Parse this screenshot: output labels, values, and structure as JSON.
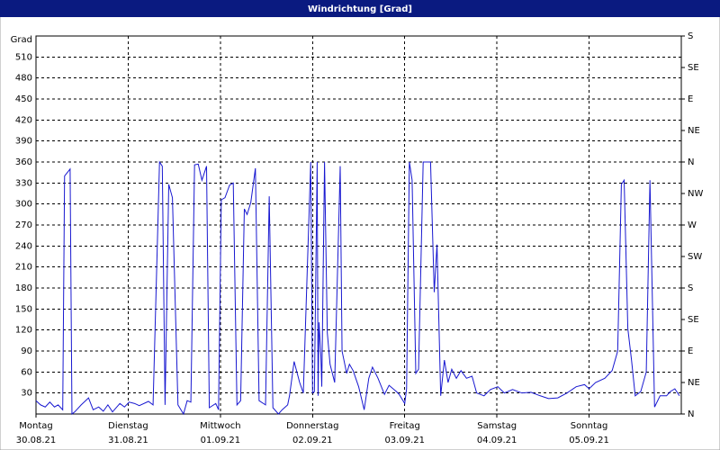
{
  "chart_data": {
    "type": "line",
    "title": "Windrichtung [Grad]",
    "y_label": "Grad",
    "color": "#1818d0",
    "grid": true,
    "xlim": [
      0,
      7
    ],
    "xticks": [
      {
        "value": 0,
        "label": "Montag"
      },
      {
        "value": 1,
        "label": "Dienstag"
      },
      {
        "value": 2,
        "label": "Mittwoch"
      },
      {
        "value": 3,
        "label": "Donnerstag"
      },
      {
        "value": 4,
        "label": "Freitag"
      },
      {
        "value": 5,
        "label": "Samstag"
      },
      {
        "value": 6,
        "label": "Sonntag"
      }
    ],
    "xtick_dates": [
      "30.08.21",
      "31.08.21",
      "01.09.21",
      "02.09.21",
      "03.09.21",
      "04.09.21",
      "05.09.21"
    ],
    "ylim": [
      0,
      540
    ],
    "yticks": [
      30,
      60,
      90,
      120,
      150,
      180,
      210,
      240,
      270,
      300,
      330,
      360,
      390,
      420,
      450,
      480,
      510
    ],
    "y2lim": [
      0,
      540
    ],
    "y2ticks": [
      {
        "value": 0,
        "label": "N"
      },
      {
        "value": 45,
        "label": "NE"
      },
      {
        "value": 90,
        "label": "E"
      },
      {
        "value": 135,
        "label": "SE"
      },
      {
        "value": 180,
        "label": "S"
      },
      {
        "value": 225,
        "label": "SW"
      },
      {
        "value": 270,
        "label": "W"
      },
      {
        "value": 315,
        "label": "NW"
      },
      {
        "value": 360,
        "label": "N"
      },
      {
        "value": 405,
        "label": "NE"
      },
      {
        "value": 450,
        "label": "E"
      },
      {
        "value": 495,
        "label": "SE"
      },
      {
        "value": 540,
        "label": "S"
      }
    ],
    "x": [
      0,
      0.05,
      0.1,
      0.15,
      0.2,
      0.24,
      0.29,
      0.31,
      0.37,
      0.39,
      0.42,
      0.49,
      0.57,
      0.62,
      0.68,
      0.73,
      0.78,
      0.83,
      0.91,
      0.96,
      1.01,
      1.07,
      1.12,
      1.22,
      1.27,
      1.34,
      1.37,
      1.4,
      1.44,
      1.48,
      1.54,
      1.6,
      1.64,
      1.68,
      1.72,
      1.76,
      1.8,
      1.85,
      1.88,
      1.95,
      1.98,
      2.01,
      2.05,
      2.1,
      2.14,
      2.18,
      2.22,
      2.26,
      2.29,
      2.33,
      2.38,
      2.42,
      2.49,
      2.53,
      2.57,
      2.63,
      2.67,
      2.73,
      2.75,
      2.8,
      2.86,
      2.9,
      2.98,
      3.0,
      3.02,
      3.05,
      3.06,
      3.07,
      3.09,
      3.1,
      3.13,
      3.16,
      3.19,
      3.24,
      3.3,
      3.32,
      3.37,
      3.4,
      3.44,
      3.5,
      3.56,
      3.61,
      3.65,
      3.71,
      3.78,
      3.83,
      3.91,
      3.94,
      4.0,
      4.02,
      4.05,
      4.08,
      4.12,
      4.15,
      4.2,
      4.28,
      4.32,
      4.35,
      4.39,
      4.43,
      4.47,
      4.51,
      4.56,
      4.61,
      4.67,
      4.73,
      4.78,
      4.86,
      4.93,
      5.01,
      5.08,
      5.17,
      5.27,
      5.37,
      5.47,
      5.56,
      5.66,
      5.76,
      5.86,
      5.95,
      6.0,
      6.07,
      6.17,
      6.25,
      6.31,
      6.35,
      6.38,
      6.42,
      6.46,
      6.5,
      6.56,
      6.62,
      6.66,
      6.71,
      6.77,
      6.84,
      6.88,
      6.93,
      6.98
    ],
    "values": [
      19,
      13,
      10,
      17,
      10,
      13,
      6,
      340,
      350,
      0,
      3,
      13,
      23,
      6,
      10,
      4,
      13,
      3,
      15,
      10,
      17,
      15,
      12,
      18,
      13,
      360,
      354,
      13,
      328,
      309,
      13,
      0,
      19,
      17,
      356,
      357,
      334,
      354,
      9,
      15,
      6,
      306,
      309,
      327,
      330,
      13,
      19,
      293,
      285,
      302,
      351,
      19,
      13,
      311,
      9,
      0,
      6,
      13,
      26,
      75,
      45,
      30,
      360,
      30,
      32,
      360,
      26,
      131,
      84,
      39,
      360,
      116,
      71,
      45,
      354,
      90,
      58,
      71,
      62,
      39,
      6,
      51,
      67,
      51,
      28,
      41,
      32,
      28,
      15,
      36,
      360,
      334,
      58,
      64,
      360,
      360,
      174,
      242,
      26,
      77,
      45,
      64,
      51,
      62,
      51,
      54,
      30,
      26,
      35,
      39,
      30,
      35,
      30,
      31,
      26,
      22,
      23,
      30,
      39,
      42,
      36,
      45,
      51,
      62,
      90,
      328,
      334,
      122,
      77,
      26,
      32,
      60,
      334,
      10,
      26,
      26,
      32,
      36,
      26
    ]
  }
}
